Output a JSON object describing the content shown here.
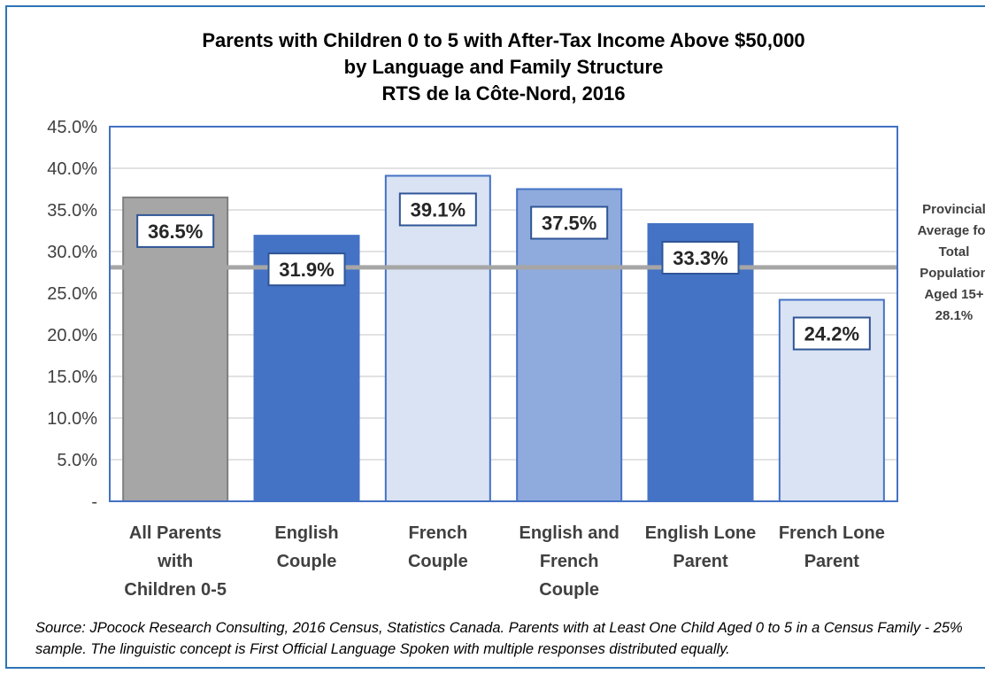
{
  "chart_data": {
    "type": "bar",
    "title_lines": [
      "Parents with Children 0 to 5 with After-Tax Income Above $50,000",
      "by Language and Family Structure",
      "RTS de la Côte-Nord, 2016"
    ],
    "categories": [
      [
        "All Parents",
        "with",
        "Children 0-5"
      ],
      [
        "English",
        "Couple"
      ],
      [
        "French",
        "Couple"
      ],
      [
        "English and",
        "French",
        "Couple"
      ],
      [
        "English Lone",
        "Parent"
      ],
      [
        "French Lone",
        "Parent"
      ]
    ],
    "values": [
      36.5,
      31.9,
      39.1,
      37.5,
      33.3,
      24.2
    ],
    "data_labels": [
      "36.5%",
      "31.9%",
      "39.1%",
      "37.5%",
      "33.3%",
      "24.2%"
    ],
    "bar_colors": [
      "#a6a6a6",
      "#4472c4",
      "#dae3f3",
      "#8faadc",
      "#4472c4",
      "#dae3f3"
    ],
    "bar_border_colors": [
      "#7f7f7f",
      "#4472c4",
      "#4472c4",
      "#4472c4",
      "#4472c4",
      "#4472c4"
    ],
    "ylim": [
      0,
      45
    ],
    "yticks": [
      0,
      5,
      10,
      15,
      20,
      25,
      30,
      35,
      40,
      45
    ],
    "ytick_labels": [
      "-",
      "5.0%",
      "10.0%",
      "15.0%",
      "20.0%",
      "25.0%",
      "30.0%",
      "35.0%",
      "40.0%",
      "45.0%"
    ],
    "grid": true,
    "reference_line": {
      "value": 28.1,
      "color": "#a6a6a6",
      "label_lines": [
        "Provincial",
        "Average for",
        "Total",
        "Population",
        "Aged 15+",
        "28.1%"
      ]
    },
    "plot_border_color": "#4472c4",
    "source": "Source: JPocock Research Consulting, 2016 Census, Statistics Canada. Parents with at Least One Child Aged 0 to 5 in a Census Family - 25% sample. The linguistic concept is First Official Language Spoken with multiple responses distributed equally."
  }
}
